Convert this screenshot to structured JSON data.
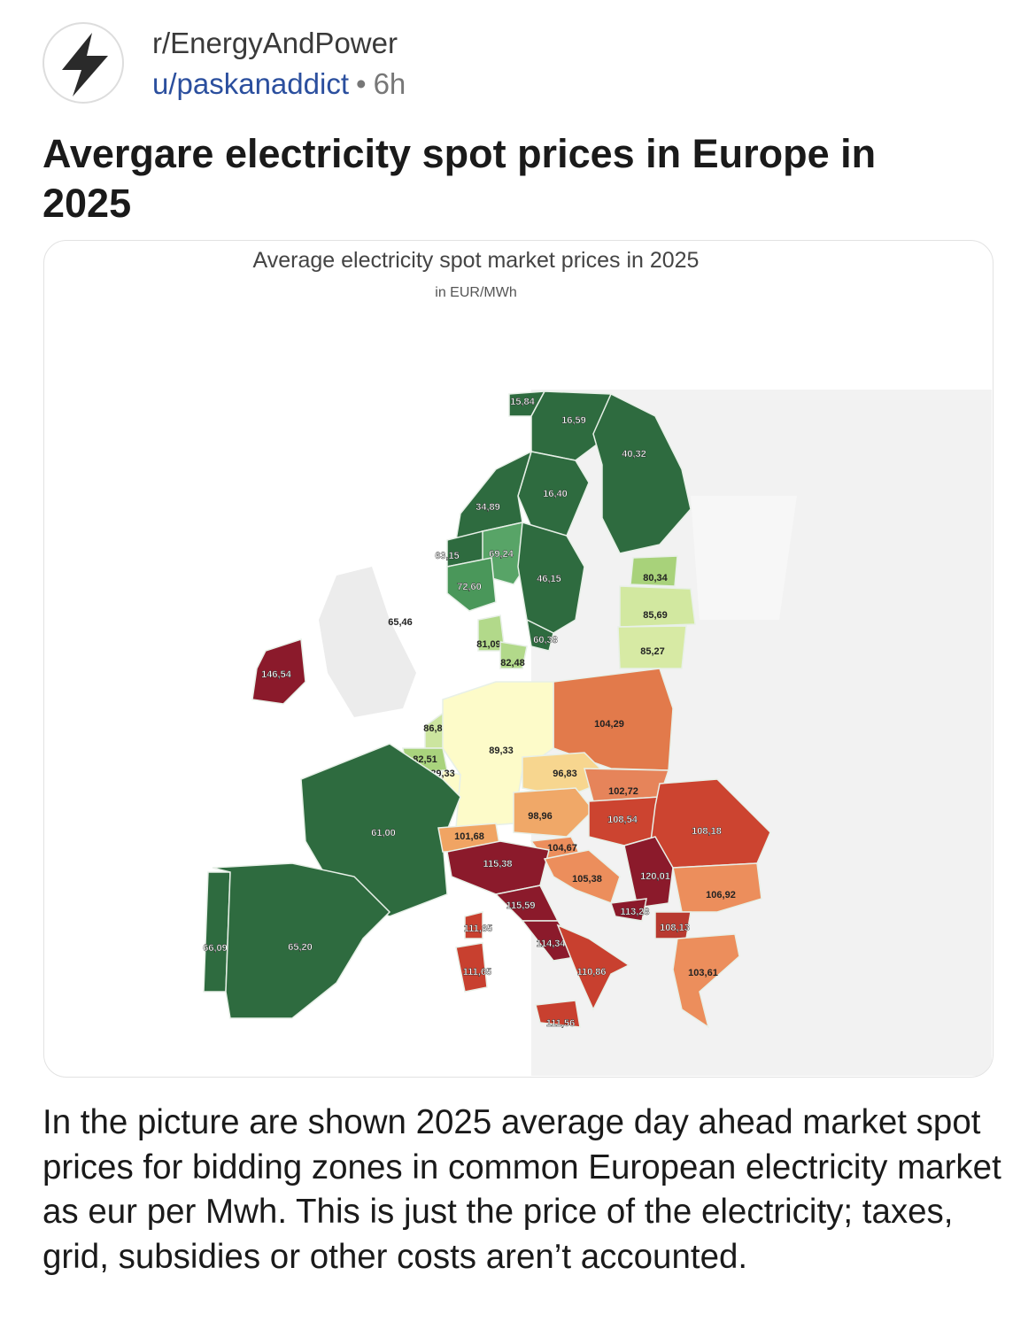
{
  "post": {
    "subreddit": "r/EnergyAndPower",
    "user": "u/paskanaddict",
    "separator": "•",
    "age": "6h",
    "avatar_icon": "lightning-bolt-icon",
    "title": "Avergare electricity spot prices in Europe in 2025",
    "body": "In the picture are shown 2025 average day ahead market spot prices for bidding zones in common European electricity market as eur per Mwh. This is just the price of the electricity; taxes, grid, subsidies or other costs aren’t accounted."
  },
  "map": {
    "title": "Average electricity spot market prices in 2025",
    "subtitle": "in EUR/MWh",
    "zones": [
      {
        "label": "15,84",
        "color": "#2e6b3f"
      },
      {
        "label": "16,59",
        "color": "#2e6b3f"
      },
      {
        "label": "40,32",
        "color": "#2e6b3f"
      },
      {
        "label": "16,40",
        "color": "#2e6b3f"
      },
      {
        "label": "34,89",
        "color": "#2e6b3f"
      },
      {
        "label": "63,15",
        "color": "#2e6b3f"
      },
      {
        "label": "69,24",
        "color": "#58a467"
      },
      {
        "label": "72,60",
        "color": "#4a975a"
      },
      {
        "label": "46,15",
        "color": "#2e6b3f"
      },
      {
        "label": "80,34",
        "color": "#a8d27a"
      },
      {
        "label": "85,69",
        "color": "#d2e8a0"
      },
      {
        "label": "85,27",
        "color": "#d7eaa4"
      },
      {
        "label": "65,46",
        "color": "#ececec"
      },
      {
        "label": "81,09",
        "color": "#b2d98a"
      },
      {
        "label": "82,48",
        "color": "#b2d98a"
      },
      {
        "label": "60,38",
        "color": "#2e6b3f"
      },
      {
        "label": "146,54",
        "color": "#8b1a2b"
      },
      {
        "label": "104,29",
        "color": "#e27a4b"
      },
      {
        "label": "86,81",
        "color": "#cce59f"
      },
      {
        "label": "82,51",
        "color": "#a9d37d"
      },
      {
        "label": "89,33",
        "color": "#fdfbc9"
      },
      {
        "label": "89,33",
        "color": "#fdfbc9"
      },
      {
        "label": "96,83",
        "color": "#f7d68f"
      },
      {
        "label": "102,72",
        "color": "#e6845a"
      },
      {
        "label": "98,96",
        "color": "#f0a868"
      },
      {
        "label": "108,54",
        "color": "#cc4430"
      },
      {
        "label": "108,18",
        "color": "#cc4430"
      },
      {
        "label": "61,00",
        "color": "#2e6b3f"
      },
      {
        "label": "101,68",
        "color": "#f0a463"
      },
      {
        "label": "104,67",
        "color": "#ec8e5c"
      },
      {
        "label": "115,38",
        "color": "#8b1a2b"
      },
      {
        "label": "105,38",
        "color": "#ec8e5c"
      },
      {
        "label": "120,01",
        "color": "#8b1a2b"
      },
      {
        "label": "106,92",
        "color": "#ec8e5c"
      },
      {
        "label": "115,59",
        "color": "#8b1a2b"
      },
      {
        "label": "113,28",
        "color": "#8b1a2b"
      },
      {
        "label": "111,65",
        "color": "#c8402f"
      },
      {
        "label": "108,13",
        "color": "#b83a30"
      },
      {
        "label": "66,09",
        "color": "#2e6b3f"
      },
      {
        "label": "65,20",
        "color": "#2e6b3f"
      },
      {
        "label": "114,34",
        "color": "#8b1a2b"
      },
      {
        "label": "111,65",
        "color": "#c8402f"
      },
      {
        "label": "110,86",
        "color": "#c8402f"
      },
      {
        "label": "103,61",
        "color": "#ec8e5c"
      },
      {
        "label": "111,56",
        "color": "#c8402f"
      }
    ]
  }
}
